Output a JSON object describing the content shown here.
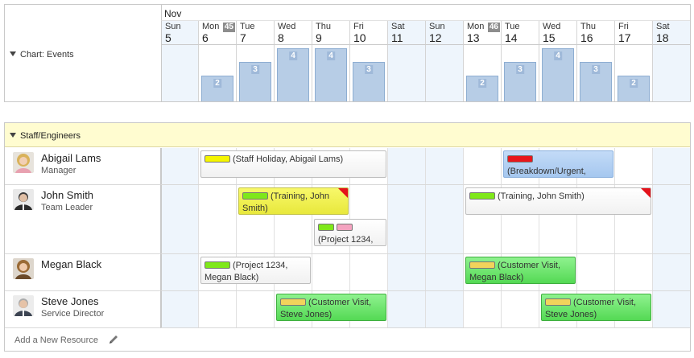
{
  "header": {
    "month": "Nov",
    "days": [
      {
        "dow": "Sun",
        "num": "5",
        "weekend": true,
        "week": ""
      },
      {
        "dow": "Mon",
        "num": "6",
        "weekend": false,
        "week": "45"
      },
      {
        "dow": "Tue",
        "num": "7",
        "weekend": false,
        "week": ""
      },
      {
        "dow": "Wed",
        "num": "8",
        "weekend": false,
        "week": ""
      },
      {
        "dow": "Thu",
        "num": "9",
        "weekend": false,
        "week": ""
      },
      {
        "dow": "Fri",
        "num": "10",
        "weekend": false,
        "week": ""
      },
      {
        "dow": "Sat",
        "num": "11",
        "weekend": true,
        "week": ""
      },
      {
        "dow": "Sun",
        "num": "12",
        "weekend": true,
        "week": ""
      },
      {
        "dow": "Mon",
        "num": "13",
        "weekend": false,
        "week": "46"
      },
      {
        "dow": "Tue",
        "num": "14",
        "weekend": false,
        "week": ""
      },
      {
        "dow": "Wed",
        "num": "15",
        "weekend": false,
        "week": ""
      },
      {
        "dow": "Thu",
        "num": "16",
        "weekend": false,
        "week": ""
      },
      {
        "dow": "Fri",
        "num": "17",
        "weekend": false,
        "week": ""
      },
      {
        "dow": "Sat",
        "num": "18",
        "weekend": true,
        "week": ""
      }
    ]
  },
  "chart": {
    "label": "Chart: Events",
    "counts": [
      0,
      2,
      3,
      4,
      4,
      3,
      0,
      0,
      2,
      3,
      4,
      3,
      2,
      0
    ],
    "max": 4
  },
  "group": {
    "label": "Staff/Engineers"
  },
  "resources": [
    {
      "name": "Abigail Lams",
      "role": "Manager",
      "avatar": "avatar-female-blonde"
    },
    {
      "name": "John Smith",
      "role": "Team Leader",
      "avatar": "avatar-male-dark"
    },
    {
      "name": "Megan Black",
      "role": "",
      "avatar": "avatar-female-brown"
    },
    {
      "name": "Steve Jones",
      "role": "Service Director",
      "avatar": "avatar-male-grey"
    }
  ],
  "events": [
    {
      "row": 0,
      "start": 1,
      "span": 5,
      "lane": 0,
      "style": "white",
      "swatches": [
        "#f5f500"
      ],
      "text": "(Staff Holiday, Abigail Lams)",
      "flag": false
    },
    {
      "row": 0,
      "start": 9,
      "span": 3,
      "lane": 0,
      "style": "blue",
      "swatches": [
        "#e8161b"
      ],
      "text": "(Breakdown/Urgent,",
      "flag": false
    },
    {
      "row": 1,
      "start": 2,
      "span": 3,
      "lane": 0,
      "style": "yellow",
      "swatches": [
        "#7fe81a"
      ],
      "text": "(Training, John Smith)",
      "flag": true
    },
    {
      "row": 1,
      "start": 8,
      "span": 5,
      "lane": 0,
      "style": "white",
      "swatches": [
        "#7fe81a"
      ],
      "text": "(Training, John Smith)",
      "flag": true
    },
    {
      "row": 1,
      "start": 4,
      "span": 2,
      "lane": 1,
      "style": "white",
      "swatches": [
        "#7fe81a",
        "#f4a3c0"
      ],
      "text": "(Project 1234,",
      "flag": false
    },
    {
      "row": 2,
      "start": 1,
      "span": 3,
      "lane": 0,
      "style": "white",
      "swatches": [
        "#7fe81a"
      ],
      "text": "(Project 1234, Megan Black)",
      "flag": false
    },
    {
      "row": 2,
      "start": 8,
      "span": 3,
      "lane": 0,
      "style": "green",
      "swatches": [
        "#f2d35b"
      ],
      "text": "(Customer Visit, Megan Black)",
      "flag": false
    },
    {
      "row": 3,
      "start": 3,
      "span": 3,
      "lane": 0,
      "style": "green",
      "swatches": [
        "#f2d35b"
      ],
      "text": "(Customer Visit, Steve Jones)",
      "flag": false
    },
    {
      "row": 3,
      "start": 10,
      "span": 3,
      "lane": 0,
      "style": "green",
      "swatches": [
        "#f2d35b"
      ],
      "text": "(Customer Visit, Steve Jones)",
      "flag": false
    }
  ],
  "footer": {
    "add_label": "Add a New Resource"
  }
}
